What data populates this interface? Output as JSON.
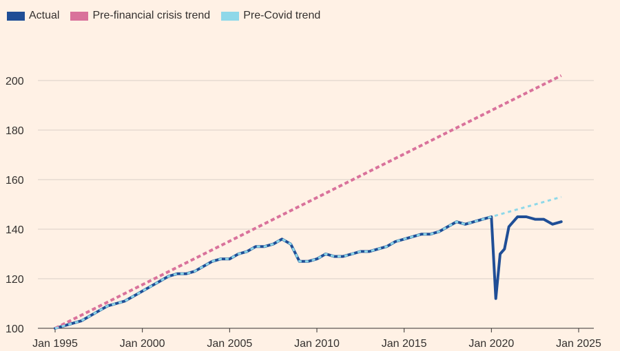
{
  "legend": {
    "actual": "Actual",
    "pre_financial": "Pre-financial crisis trend",
    "pre_covid": "Pre-Covid trend"
  },
  "colors": {
    "background": "#FFF1E5",
    "actual": "#1F4E96",
    "pre_financial": "#D9729B",
    "pre_covid": "#8ED8E9",
    "grid": "#D9CFC6"
  },
  "chart_data": {
    "type": "line",
    "xlim": [
      "1995-01",
      "2025-01"
    ],
    "ylim": [
      100,
      200
    ],
    "x_ticks": [
      "Jan 1995",
      "Jan 2000",
      "Jan 2005",
      "Jan 2010",
      "Jan 2015",
      "Jan 2020",
      "Jan 2025"
    ],
    "y_ticks": [
      100,
      120,
      140,
      160,
      180,
      200
    ],
    "grid": true,
    "legend_position": "top-left",
    "series": [
      {
        "name": "Actual",
        "style": "solid",
        "x": [
          "1995-01",
          "1995-07",
          "1996-01",
          "1996-07",
          "1997-01",
          "1997-07",
          "1998-01",
          "1998-07",
          "1999-01",
          "1999-07",
          "2000-01",
          "2000-07",
          "2001-01",
          "2001-07",
          "2002-01",
          "2002-07",
          "2003-01",
          "2003-07",
          "2004-01",
          "2004-07",
          "2005-01",
          "2005-07",
          "2006-01",
          "2006-07",
          "2007-01",
          "2007-07",
          "2008-01",
          "2008-07",
          "2009-01",
          "2009-07",
          "2010-01",
          "2010-07",
          "2011-01",
          "2011-07",
          "2012-01",
          "2012-07",
          "2013-01",
          "2013-07",
          "2014-01",
          "2014-07",
          "2015-01",
          "2015-07",
          "2016-01",
          "2016-07",
          "2017-01",
          "2017-07",
          "2018-01",
          "2018-07",
          "2019-01",
          "2019-07",
          "2020-01",
          "2020-04",
          "2020-07",
          "2020-10",
          "2021-01",
          "2021-04",
          "2021-07",
          "2022-01",
          "2022-07",
          "2023-01",
          "2023-07",
          "2024-01"
        ],
        "values": [
          100,
          101,
          102,
          103,
          105,
          107,
          109,
          110,
          111,
          113,
          115,
          117,
          119,
          121,
          122,
          122,
          123,
          125,
          127,
          128,
          128,
          130,
          131,
          133,
          133,
          134,
          136,
          134,
          127,
          127,
          128,
          130,
          129,
          129,
          130,
          131,
          131,
          132,
          133,
          135,
          136,
          137,
          138,
          138,
          139,
          141,
          143,
          142,
          143,
          144,
          145,
          112,
          130,
          132,
          141,
          143,
          145,
          145,
          144,
          144,
          142,
          143
        ]
      },
      {
        "name": "Pre-financial crisis trend",
        "style": "dashed",
        "x": [
          "1995-01",
          "2024-01"
        ],
        "values": [
          100,
          202
        ]
      },
      {
        "name": "Pre-Covid trend",
        "style": "dashed",
        "x": [
          "1995-01",
          "1995-07",
          "1996-01",
          "1996-07",
          "1997-01",
          "1997-07",
          "1998-01",
          "1998-07",
          "1999-01",
          "1999-07",
          "2000-01",
          "2000-07",
          "2001-01",
          "2001-07",
          "2002-01",
          "2002-07",
          "2003-01",
          "2003-07",
          "2004-01",
          "2004-07",
          "2005-01",
          "2005-07",
          "2006-01",
          "2006-07",
          "2007-01",
          "2007-07",
          "2008-01",
          "2008-07",
          "2009-01",
          "2009-07",
          "2010-01",
          "2010-07",
          "2011-01",
          "2011-07",
          "2012-01",
          "2012-07",
          "2013-01",
          "2013-07",
          "2014-01",
          "2014-07",
          "2015-01",
          "2015-07",
          "2016-01",
          "2016-07",
          "2017-01",
          "2017-07",
          "2018-01",
          "2018-07",
          "2019-01",
          "2019-07",
          "2020-01",
          "2024-01"
        ],
        "values": [
          100,
          101,
          102,
          103,
          105,
          107,
          109,
          110,
          111,
          113,
          115,
          117,
          119,
          121,
          122,
          122,
          123,
          125,
          127,
          128,
          128,
          130,
          131,
          133,
          133,
          134,
          136,
          134,
          127,
          127,
          128,
          130,
          129,
          129,
          130,
          131,
          131,
          132,
          133,
          135,
          136,
          137,
          138,
          138,
          139,
          141,
          143,
          142,
          143,
          144,
          145,
          153
        ]
      }
    ]
  }
}
